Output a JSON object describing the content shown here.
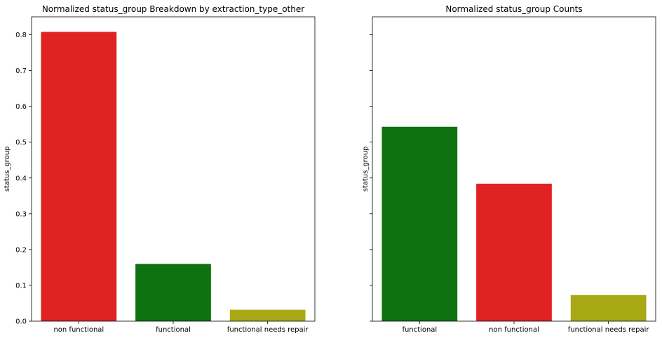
{
  "chart_data": [
    {
      "type": "bar",
      "title": "Normalized status_group Breakdown by extraction_type_other",
      "xlabel": "",
      "ylabel": "status_group",
      "categories": [
        "non functional",
        "functional",
        "functional needs repair"
      ],
      "values": [
        0.808,
        0.16,
        0.032
      ],
      "colors": [
        "#e02222",
        "#0f7210",
        "#a9a815"
      ],
      "ylim": [
        0,
        0.85
      ],
      "yticks": [
        0.0,
        0.1,
        0.2,
        0.3,
        0.4,
        0.5,
        0.6,
        0.7,
        0.8
      ],
      "ytick_labels": [
        "0.0",
        "0.1",
        "0.2",
        "0.3",
        "0.4",
        "0.5",
        "0.6",
        "0.7",
        "0.8"
      ],
      "grid": false,
      "legend": false
    },
    {
      "type": "bar",
      "title": "Normalized status_group Counts",
      "xlabel": "",
      "ylabel": "status_group",
      "categories": [
        "functional",
        "non functional",
        "functional needs repair"
      ],
      "values": [
        0.543,
        0.384,
        0.073
      ],
      "colors": [
        "#0f7210",
        "#e02222",
        "#a9a815"
      ],
      "ylim": [
        0,
        0.85
      ],
      "yticks": [
        0.0,
        0.1,
        0.2,
        0.3,
        0.4,
        0.5,
        0.6,
        0.7,
        0.8
      ],
      "ytick_labels": [],
      "grid": false,
      "legend": false,
      "sharey": true
    }
  ]
}
